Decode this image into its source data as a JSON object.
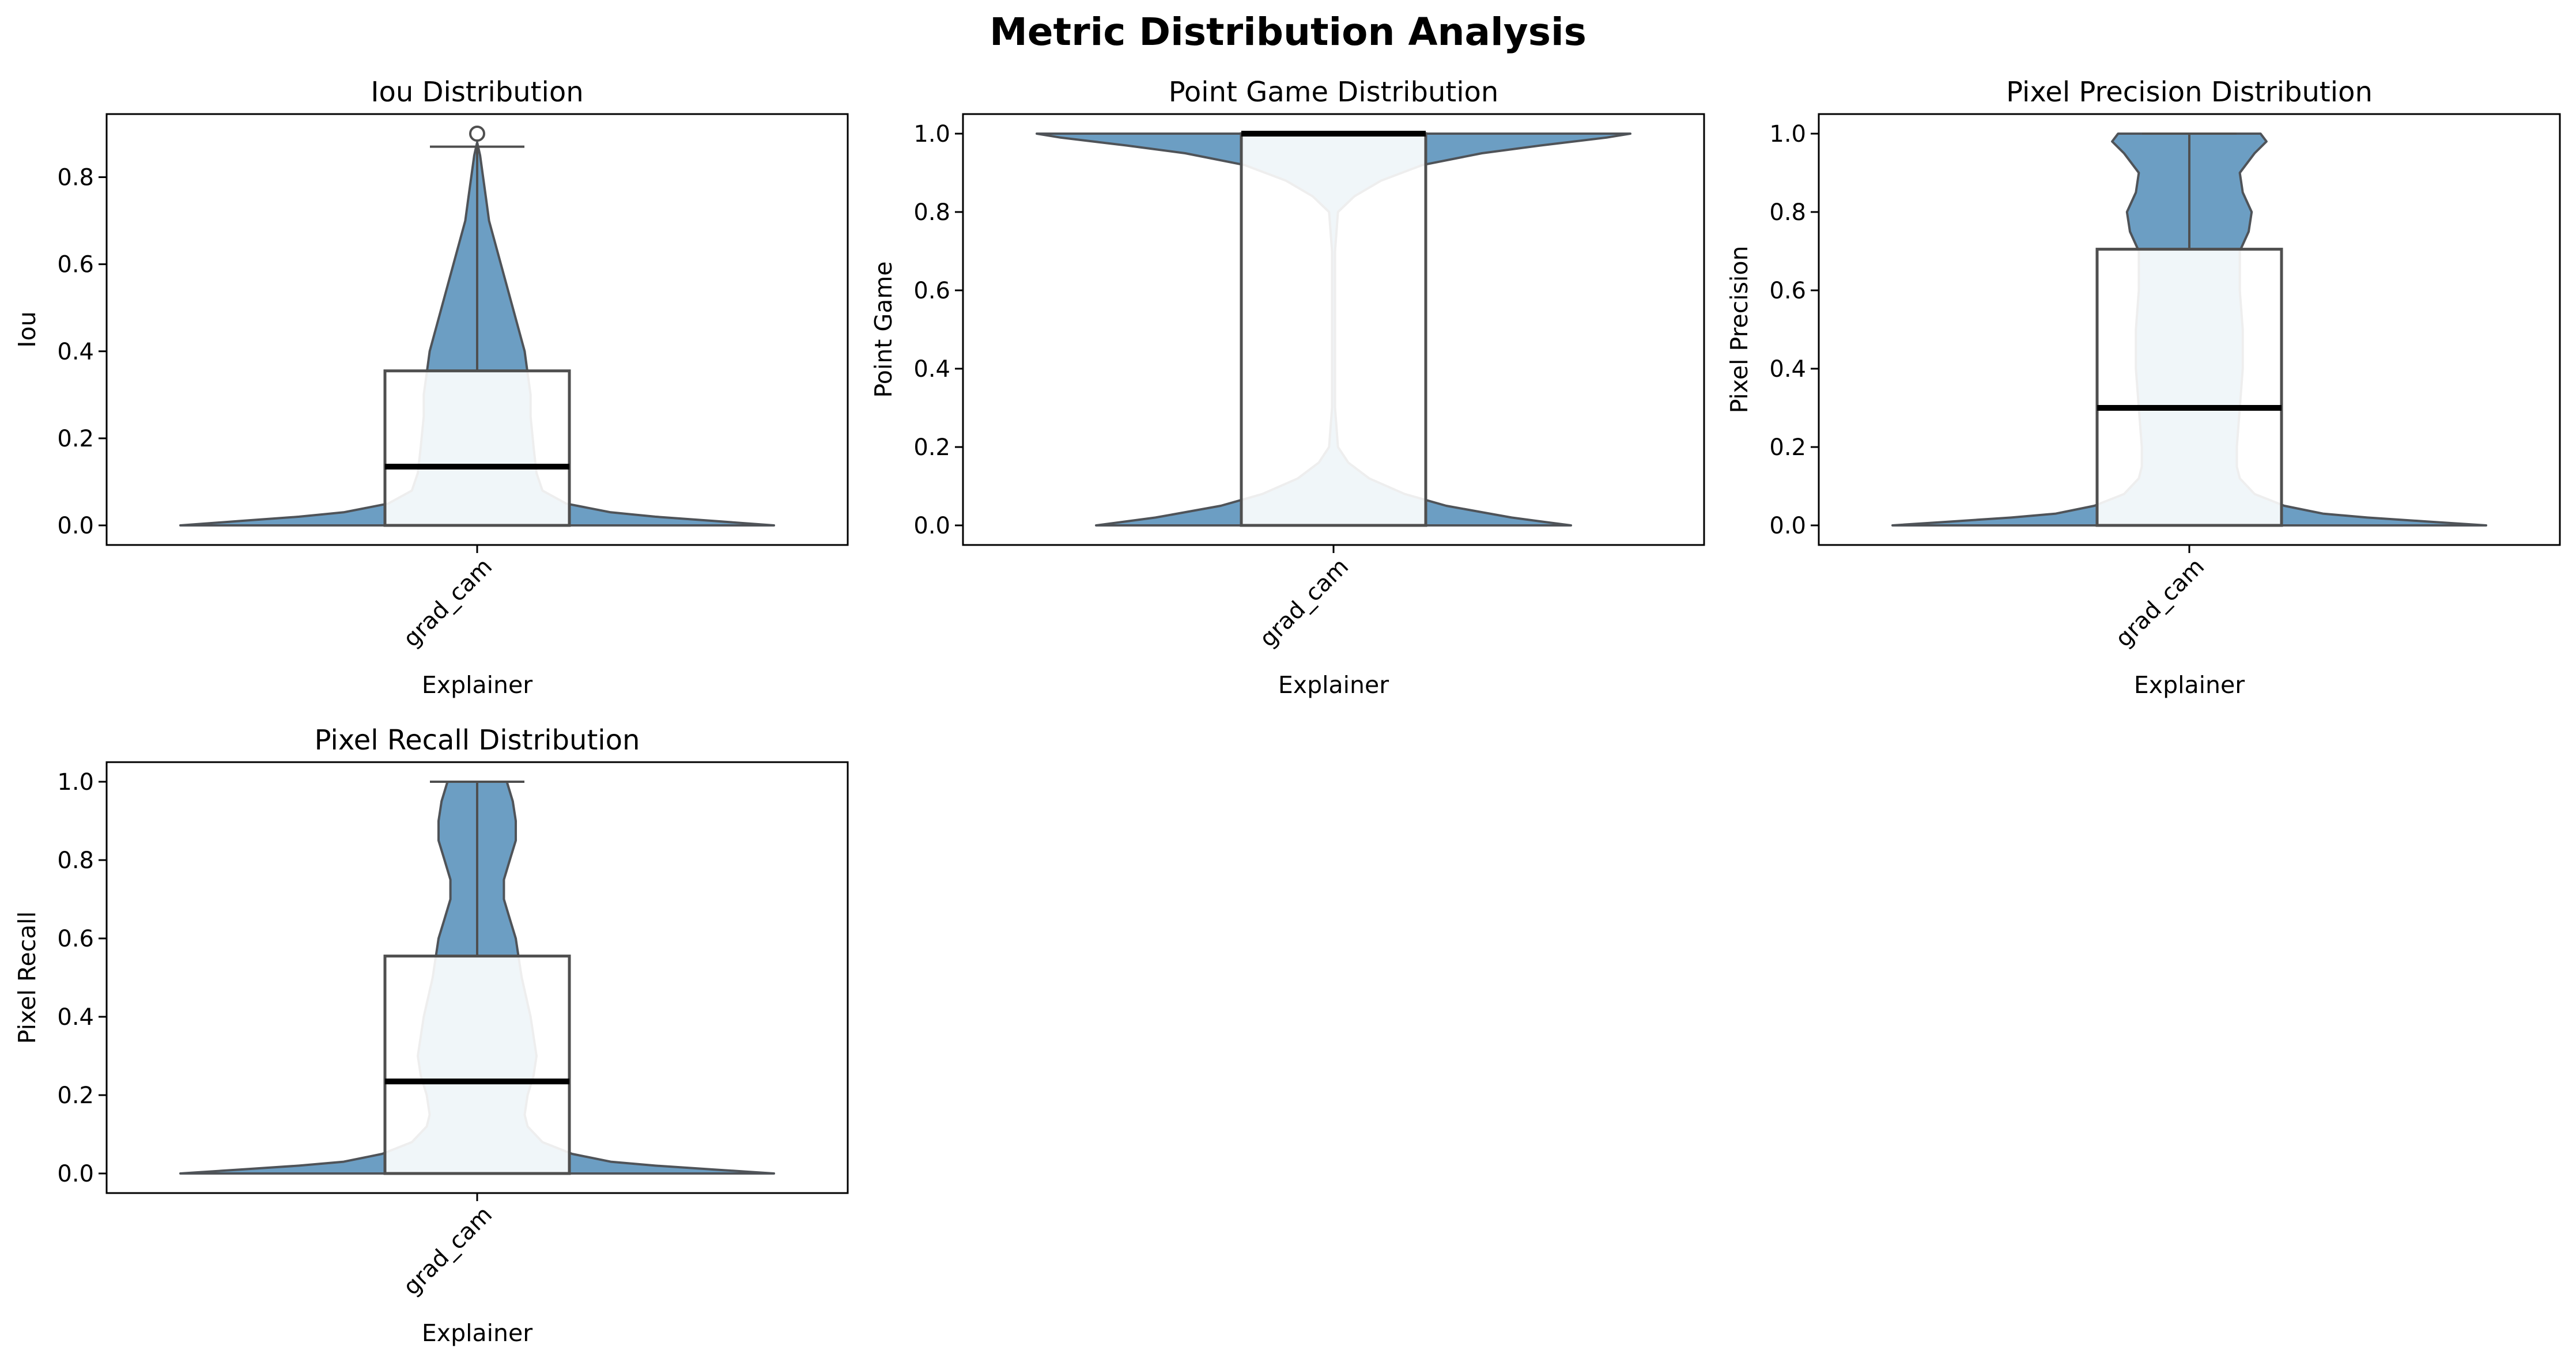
{
  "figure": {
    "title": "Metric Distribution Analysis"
  },
  "colors": {
    "violin_fill": "#6c9ec3",
    "violin_edge": "#4f5358",
    "box_fill": "#ffffff",
    "box_edge": "#4f4f4f",
    "median": "#000000",
    "axes_edge": "#000000"
  },
  "chart_data": [
    {
      "type": "violin",
      "title": "Iou Distribution",
      "xlabel": "Explainer",
      "ylabel": "Iou",
      "categories": [
        "grad_cam"
      ],
      "ylim": [
        -0.045,
        0.945
      ],
      "yticks": [
        0.0,
        0.2,
        0.4,
        0.6,
        0.8
      ],
      "ytick_labels": [
        "0.0",
        "0.2",
        "0.4",
        "0.6",
        "0.8"
      ],
      "box": {
        "q1": 0.0,
        "median": 0.135,
        "q3": 0.355,
        "whisker_low": 0.0,
        "whisker_high": 0.87
      },
      "outliers": [
        0.9
      ],
      "density": {
        "y": [
          0.0,
          0.01,
          0.02,
          0.03,
          0.05,
          0.08,
          0.12,
          0.18,
          0.25,
          0.3,
          0.35,
          0.4,
          0.45,
          0.5,
          0.55,
          0.6,
          0.65,
          0.7,
          0.75,
          0.8,
          0.85,
          0.88
        ],
        "width": [
          1.0,
          0.8,
          0.6,
          0.45,
          0.3,
          0.22,
          0.2,
          0.19,
          0.18,
          0.18,
          0.17,
          0.16,
          0.14,
          0.12,
          0.1,
          0.08,
          0.06,
          0.04,
          0.03,
          0.02,
          0.01,
          0.0
        ]
      }
    },
    {
      "type": "violin",
      "title": "Point Game Distribution",
      "xlabel": "Explainer",
      "ylabel": "Point Game",
      "categories": [
        "grad_cam"
      ],
      "ylim": [
        -0.05,
        1.05
      ],
      "yticks": [
        0.0,
        0.2,
        0.4,
        0.6,
        0.8,
        1.0
      ],
      "ytick_labels": [
        "0.0",
        "0.2",
        "0.4",
        "0.6",
        "0.8",
        "1.0"
      ],
      "box": {
        "q1": 0.0,
        "median": 1.0,
        "q3": 1.0,
        "whisker_low": 0.0,
        "whisker_high": 1.0
      },
      "outliers": [],
      "density": {
        "y": [
          0.0,
          0.02,
          0.05,
          0.08,
          0.12,
          0.16,
          0.2,
          0.3,
          0.5,
          0.7,
          0.8,
          0.84,
          0.88,
          0.92,
          0.95,
          0.97,
          0.99,
          1.0
        ],
        "width": [
          0.8,
          0.6,
          0.38,
          0.24,
          0.12,
          0.05,
          0.015,
          0.005,
          0.005,
          0.005,
          0.015,
          0.07,
          0.16,
          0.3,
          0.5,
          0.7,
          0.92,
          1.0
        ]
      }
    },
    {
      "type": "violin",
      "title": "Pixel Precision Distribution",
      "xlabel": "Explainer",
      "ylabel": "Pixel Precision",
      "categories": [
        "grad_cam"
      ],
      "ylim": [
        -0.05,
        1.05
      ],
      "yticks": [
        0.0,
        0.2,
        0.4,
        0.6,
        0.8,
        1.0
      ],
      "ytick_labels": [
        "0.0",
        "0.2",
        "0.4",
        "0.6",
        "0.8",
        "1.0"
      ],
      "box": {
        "q1": 0.0,
        "median": 0.3,
        "q3": 0.705,
        "whisker_low": 0.0,
        "whisker_high": 1.0
      },
      "outliers": [],
      "density": {
        "y": [
          0.0,
          0.01,
          0.02,
          0.03,
          0.05,
          0.08,
          0.12,
          0.15,
          0.2,
          0.3,
          0.4,
          0.5,
          0.6,
          0.7,
          0.75,
          0.8,
          0.85,
          0.9,
          0.95,
          0.98,
          1.0
        ],
        "width": [
          1.0,
          0.8,
          0.6,
          0.45,
          0.32,
          0.22,
          0.17,
          0.16,
          0.16,
          0.17,
          0.18,
          0.18,
          0.17,
          0.17,
          0.2,
          0.21,
          0.18,
          0.17,
          0.22,
          0.26,
          0.24
        ]
      }
    },
    {
      "type": "violin",
      "title": "Pixel Recall Distribution",
      "xlabel": "Explainer",
      "ylabel": "Pixel Recall",
      "categories": [
        "grad_cam"
      ],
      "ylim": [
        -0.05,
        1.05
      ],
      "yticks": [
        0.0,
        0.2,
        0.4,
        0.6,
        0.8,
        1.0
      ],
      "ytick_labels": [
        "0.0",
        "0.2",
        "0.4",
        "0.6",
        "0.8",
        "1.0"
      ],
      "box": {
        "q1": 0.0,
        "median": 0.235,
        "q3": 0.555,
        "whisker_low": 0.0,
        "whisker_high": 1.0
      },
      "outliers": [],
      "density": {
        "y": [
          0.0,
          0.01,
          0.02,
          0.03,
          0.05,
          0.08,
          0.12,
          0.15,
          0.2,
          0.25,
          0.3,
          0.4,
          0.5,
          0.55,
          0.6,
          0.65,
          0.7,
          0.75,
          0.8,
          0.85,
          0.9,
          0.95,
          1.0
        ],
        "width": [
          1.0,
          0.8,
          0.6,
          0.45,
          0.32,
          0.22,
          0.17,
          0.16,
          0.17,
          0.19,
          0.2,
          0.18,
          0.15,
          0.14,
          0.13,
          0.11,
          0.09,
          0.09,
          0.11,
          0.13,
          0.13,
          0.12,
          0.1
        ]
      }
    }
  ]
}
